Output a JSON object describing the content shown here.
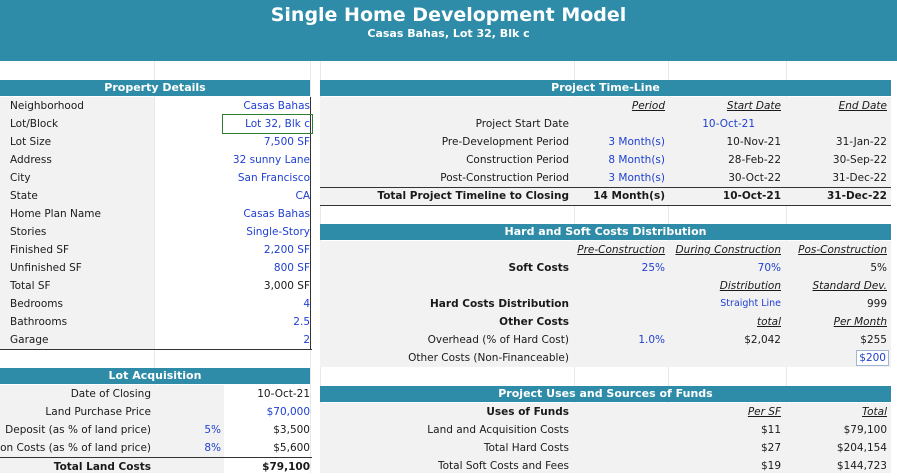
{
  "header": {
    "title": "Single Home Development Model",
    "subtitle": "Casas Bahas, Lot 32, Blk c"
  },
  "property": {
    "heading": "Property Details",
    "rows": [
      {
        "label": "Neighborhood",
        "value": "Casas Bahas"
      },
      {
        "label": "Lot/Block",
        "value": "Lot 32, Blk c"
      },
      {
        "label": "Lot Size",
        "value": "7,500 SF"
      },
      {
        "label": "Address",
        "value": "32 sunny Lane"
      },
      {
        "label": "City",
        "value": "San Francisco"
      },
      {
        "label": "State",
        "value": "CA"
      },
      {
        "label": "Home Plan Name",
        "value": "Casas Bahas"
      },
      {
        "label": "Stories",
        "value": "Single-Story"
      },
      {
        "label": "Finished SF",
        "value": "2,200 SF"
      },
      {
        "label": "Unfinished SF",
        "value": "800 SF"
      },
      {
        "label": "Total SF",
        "value": "3,000 SF"
      },
      {
        "label": "Bedrooms",
        "value": "4"
      },
      {
        "label": "Bathrooms",
        "value": "2.5"
      },
      {
        "label": "Garage",
        "value": "2"
      }
    ]
  },
  "timeline": {
    "heading": "Project Time-Line",
    "col_period": "Period",
    "col_start": "Start Date",
    "col_end": "End Date",
    "rows": [
      {
        "label": "Project Start Date",
        "period": "",
        "start": "10-Oct-21",
        "end": ""
      },
      {
        "label": "Pre-Development Period",
        "period": "3 Month(s)",
        "start": "10-Nov-21",
        "end": "31-Jan-22"
      },
      {
        "label": "Construction Period",
        "period": "8 Month(s)",
        "start": "28-Feb-22",
        "end": "30-Sep-22"
      },
      {
        "label": "Post-Construction Period",
        "period": "3 Month(s)",
        "start": "30-Oct-22",
        "end": "31-Dec-22"
      }
    ],
    "total": {
      "label": "Total Project Timeline to Closing",
      "period": "14 Month(s)",
      "start": "10-Oct-21",
      "end": "31-Dec-22"
    }
  },
  "costs": {
    "heading": "Hard and Soft Costs Distribution",
    "col_pre": "Pre-Construction",
    "col_during": "During Construction",
    "col_post": "Pos-Construction",
    "soft_label": "Soft Costs",
    "soft_pre": "25%",
    "soft_during": "70%",
    "soft_post": "5%",
    "col_distribution": "Distribution",
    "col_stddev": "Standard Dev.",
    "hard_label": "Hard Costs Distribution",
    "hard_distribution": "Straight Line",
    "hard_stddev": "999",
    "col_total": "total",
    "col_permonth": "Per Month",
    "other_label": "Other Costs",
    "overhead_label": "Overhead (% of Hard Cost)",
    "overhead_pct": "1.0%",
    "overhead_total": "$2,042",
    "overhead_month": "$255",
    "noncf_label": "Other Costs (Non-Financeable)",
    "noncf_month": "$200"
  },
  "acquisition": {
    "heading": "Lot Acquisition",
    "rows": [
      {
        "label": "Date of Closing",
        "pct": "",
        "value": "10-Oct-21"
      },
      {
        "label": "Land Purchase Price",
        "pct": "",
        "value": "$70,000"
      },
      {
        "label": "Deposit (as % of land price)",
        "pct": "5%",
        "value": "$3,500"
      },
      {
        "label": "on Costs (as % of land price)",
        "pct": "8%",
        "value": "$5,600"
      }
    ],
    "total_label": "Total Land Costs",
    "total_value": "$79,100"
  },
  "uses": {
    "heading": "Project Uses and Sources of Funds",
    "label": "Uses of Funds",
    "col_persf": "Per SF",
    "col_total": "Total",
    "rows": [
      {
        "label": "Land and Acquisition Costs",
        "persf": "$11",
        "total": "$79,100"
      },
      {
        "label": "Total Hard Costs",
        "persf": "$27",
        "total": "$204,154"
      },
      {
        "label": "Total Soft Costs and Fees",
        "persf": "$19",
        "total": "$144,723"
      }
    ]
  }
}
